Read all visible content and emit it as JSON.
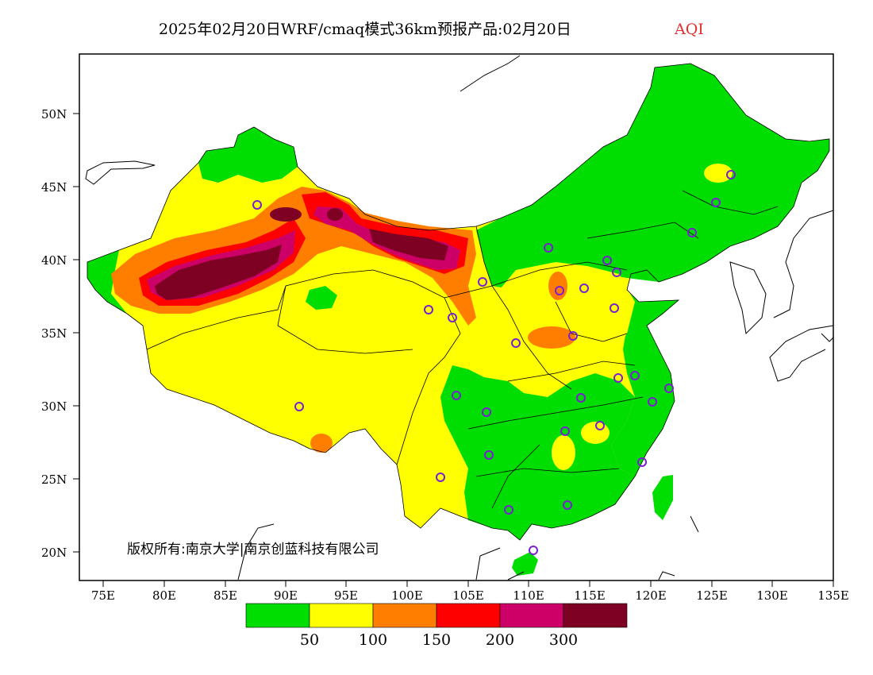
{
  "title": {
    "main": "2025年02月20日WRF/cmaq模式36km预报产品:02月20日",
    "variable": "AQI",
    "variable_color": "#e03030"
  },
  "axes": {
    "x_ticks": [
      "75E",
      "80E",
      "85E",
      "90E",
      "95E",
      "100E",
      "105E",
      "110E",
      "115E",
      "120E",
      "125E",
      "130E",
      "135E"
    ],
    "y_ticks": [
      "20N",
      "25N",
      "30N",
      "35N",
      "40N",
      "45N",
      "50N"
    ]
  },
  "copyright": "版权所有:南京大学|南京创蓝科技有限公司",
  "legend": {
    "colors": [
      "#00dd00",
      "#ffff00",
      "#ff7e00",
      "#ff0000",
      "#cc0066",
      "#7e0023"
    ],
    "labels": [
      "50",
      "100",
      "150",
      "200",
      "300"
    ]
  },
  "colors": {
    "good": "#00dd00",
    "moderate": "#ffff00",
    "usg": "#ff7e00",
    "unhealthy": "#ff0000",
    "very_unhealthy": "#cc0066",
    "hazardous": "#7e0023",
    "station_marker": "#7a1fd1"
  }
}
